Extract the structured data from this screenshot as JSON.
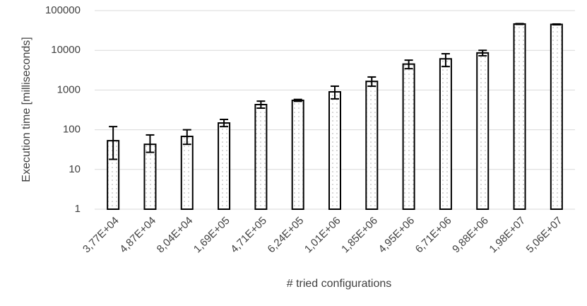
{
  "chart_data": {
    "type": "bar",
    "x_label": "# tried configurations",
    "y_label": "Execution time [milliseconds]",
    "categories": [
      "3,77E+04",
      "4,87E+04",
      "8,04E+04",
      "1,69E+05",
      "4,71E+05",
      "6,24E+05",
      "1,01E+06",
      "1,85E+06",
      "4,95E+06",
      "6,71E+06",
      "9,88E+06",
      "1,98E+07",
      "5,06E+07"
    ],
    "values": [
      53,
      43,
      68,
      148,
      430,
      550,
      900,
      1650,
      4500,
      6100,
      8600,
      46000,
      45000
    ],
    "errors_minus": [
      35,
      16,
      25,
      28,
      80,
      30,
      300,
      400,
      1050,
      2200,
      1300,
      1000,
      1000
    ],
    "errors_plus": [
      67,
      31,
      32,
      34,
      95,
      30,
      350,
      480,
      1150,
      2100,
      1400,
      1000,
      1000
    ],
    "color": "#ffffff",
    "edge_color": "#000000",
    "ylim": [
      1,
      100000
    ],
    "yticks": [
      1,
      10,
      100,
      1000,
      10000,
      100000
    ],
    "log_y": true,
    "grid": true
  }
}
